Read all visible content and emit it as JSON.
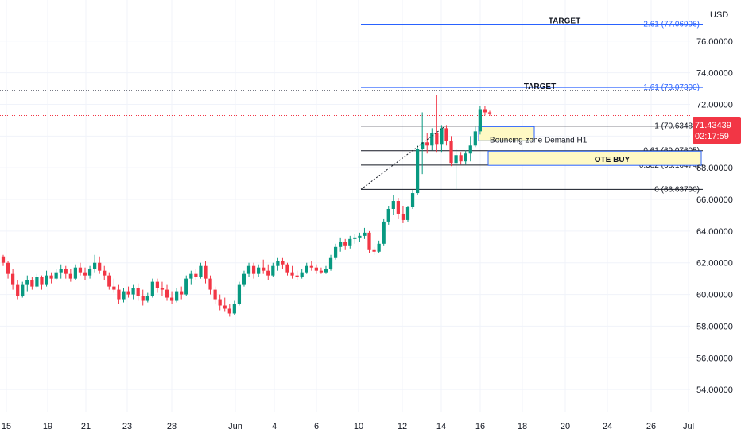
{
  "chart_data": {
    "type": "candlestick",
    "currency": "USD",
    "y_ticks": [
      "54.00000",
      "56.00000",
      "58.00000",
      "60.00000",
      "62.00000",
      "64.00000",
      "66.00000",
      "68.00000",
      "70.00000",
      "72.00000",
      "74.00000",
      "76.00000"
    ],
    "x_ticks": [
      "15",
      "19",
      "21",
      "23",
      "28",
      "Jun",
      "4",
      "6",
      "10",
      "12",
      "14",
      "16",
      "18",
      "20",
      "24",
      "26",
      "Jul"
    ],
    "ylim": [
      52.6,
      78.6
    ],
    "last_price": "71.43439",
    "countdown": "02:17:59",
    "fib_levels": [
      {
        "label": "2.61 (77.06996)",
        "value": 77.06996,
        "style": "target"
      },
      {
        "label": "1.61 (73.07300)",
        "value": 73.073,
        "style": "target"
      },
      {
        "label": "1 (70.63486)",
        "value": 70.63486,
        "style": "fib"
      },
      {
        "label": "0.61 (69.07605)",
        "value": 69.07605,
        "style": "fib"
      },
      {
        "label": "0.382 (68.16474)",
        "value": 68.16474,
        "style": "fib"
      },
      {
        "label": "0 (66.63790)",
        "value": 66.6379,
        "style": "fib"
      }
    ],
    "annotations": {
      "target_upper": "TARGET",
      "target_lower": "TARGET",
      "demand": "Bouncing zone Demand H1",
      "ote": "OTE BUY"
    },
    "dotted_levels": [
      72.9,
      71.3,
      58.7
    ],
    "zones": [
      {
        "name": "demand",
        "y_top": 70.6,
        "y_bottom": 69.7
      },
      {
        "name": "ote",
        "y_top": 69.05,
        "y_bottom": 68.15
      }
    ],
    "candles": [
      [
        62.4,
        62.5,
        61.8,
        62.0
      ],
      [
        62.0,
        62.1,
        61.0,
        61.3
      ],
      [
        61.3,
        61.6,
        60.3,
        60.6
      ],
      [
        60.6,
        60.9,
        59.7,
        59.9
      ],
      [
        59.9,
        60.8,
        59.8,
        60.6
      ],
      [
        60.6,
        61.2,
        60.2,
        60.9
      ],
      [
        60.9,
        61.1,
        60.3,
        60.5
      ],
      [
        60.5,
        61.3,
        60.4,
        61.1
      ],
      [
        61.1,
        61.2,
        60.3,
        60.6
      ],
      [
        60.6,
        61.5,
        60.5,
        61.2
      ],
      [
        61.2,
        61.4,
        60.7,
        61.0
      ],
      [
        61.0,
        61.6,
        60.9,
        61.4
      ],
      [
        61.4,
        61.9,
        61.0,
        61.6
      ],
      [
        61.6,
        61.8,
        61.0,
        61.3
      ],
      [
        61.3,
        61.6,
        60.8,
        61.0
      ],
      [
        61.0,
        61.9,
        60.9,
        61.7
      ],
      [
        61.7,
        62.0,
        61.2,
        61.4
      ],
      [
        61.4,
        61.7,
        60.9,
        61.2
      ],
      [
        61.2,
        61.8,
        61.0,
        61.6
      ],
      [
        61.6,
        62.5,
        61.4,
        62.0
      ],
      [
        62.0,
        62.4,
        61.3,
        61.5
      ],
      [
        61.5,
        61.8,
        60.9,
        61.2
      ],
      [
        61.2,
        61.4,
        60.3,
        60.5
      ],
      [
        60.5,
        61.0,
        60.1,
        60.3
      ],
      [
        60.3,
        60.6,
        59.4,
        59.7
      ],
      [
        59.7,
        60.4,
        59.5,
        60.2
      ],
      [
        60.2,
        60.5,
        59.8,
        60.0
      ],
      [
        60.0,
        60.6,
        59.7,
        60.4
      ],
      [
        60.4,
        60.7,
        59.6,
        59.9
      ],
      [
        59.9,
        60.3,
        59.3,
        59.6
      ],
      [
        59.6,
        60.1,
        59.5,
        59.9
      ],
      [
        59.9,
        61.0,
        59.8,
        60.8
      ],
      [
        60.8,
        61.0,
        60.1,
        60.4
      ],
      [
        60.4,
        60.8,
        59.9,
        60.3
      ],
      [
        60.3,
        60.6,
        59.6,
        59.8
      ],
      [
        59.8,
        60.2,
        59.4,
        59.6
      ],
      [
        59.6,
        60.4,
        59.5,
        60.2
      ],
      [
        60.2,
        60.5,
        59.7,
        60.0
      ],
      [
        60.0,
        61.2,
        59.9,
        61.0
      ],
      [
        61.0,
        61.5,
        60.6,
        61.3
      ],
      [
        61.3,
        61.6,
        60.9,
        61.1
      ],
      [
        61.1,
        62.0,
        61.0,
        61.8
      ],
      [
        61.8,
        62.1,
        60.7,
        61.0
      ],
      [
        61.0,
        61.2,
        60.0,
        60.3
      ],
      [
        60.3,
        60.5,
        59.4,
        59.7
      ],
      [
        59.7,
        60.0,
        59.0,
        59.3
      ],
      [
        59.3,
        59.8,
        58.9,
        59.1
      ],
      [
        59.1,
        59.4,
        58.6,
        58.8
      ],
      [
        58.8,
        59.6,
        58.7,
        59.4
      ],
      [
        59.4,
        60.8,
        59.3,
        60.6
      ],
      [
        60.6,
        61.5,
        60.5,
        61.3
      ],
      [
        61.3,
        62.0,
        61.1,
        61.8
      ],
      [
        61.8,
        62.0,
        61.0,
        61.3
      ],
      [
        61.3,
        61.9,
        61.1,
        61.7
      ],
      [
        61.7,
        62.2,
        61.3,
        61.5
      ],
      [
        61.5,
        61.9,
        60.9,
        61.2
      ],
      [
        61.2,
        62.0,
        61.1,
        61.8
      ],
      [
        61.8,
        62.3,
        61.5,
        62.1
      ],
      [
        62.1,
        62.3,
        61.6,
        61.9
      ],
      [
        61.9,
        62.0,
        61.2,
        61.4
      ],
      [
        61.4,
        61.8,
        61.0,
        61.2
      ],
      [
        61.2,
        61.5,
        60.9,
        61.1
      ],
      [
        61.1,
        61.6,
        61.0,
        61.4
      ],
      [
        61.4,
        62.0,
        61.3,
        61.8
      ],
      [
        61.8,
        62.1,
        61.5,
        61.7
      ],
      [
        61.7,
        61.9,
        61.3,
        61.5
      ],
      [
        61.5,
        61.7,
        61.3,
        61.4
      ],
      [
        61.4,
        61.8,
        61.3,
        61.6
      ],
      [
        61.6,
        62.5,
        61.5,
        62.3
      ],
      [
        62.3,
        63.2,
        62.2,
        63.0
      ],
      [
        63.0,
        63.6,
        62.7,
        63.3
      ],
      [
        63.3,
        63.5,
        62.8,
        63.1
      ],
      [
        63.1,
        63.7,
        62.9,
        63.5
      ],
      [
        63.5,
        63.8,
        63.2,
        63.6
      ],
      [
        63.6,
        63.9,
        63.3,
        63.7
      ],
      [
        63.7,
        64.2,
        63.5,
        63.9
      ],
      [
        63.9,
        64.0,
        62.6,
        62.8
      ],
      [
        62.8,
        63.0,
        62.5,
        62.7
      ],
      [
        62.7,
        63.4,
        62.6,
        63.2
      ],
      [
        63.2,
        64.8,
        63.1,
        64.6
      ],
      [
        64.6,
        65.6,
        64.4,
        65.4
      ],
      [
        65.4,
        66.3,
        65.0,
        65.9
      ],
      [
        65.9,
        66.1,
        64.8,
        65.1
      ],
      [
        65.1,
        65.6,
        64.5,
        64.7
      ],
      [
        64.7,
        65.6,
        64.6,
        65.5
      ],
      [
        65.5,
        66.6,
        65.4,
        66.4
      ],
      [
        66.4,
        69.4,
        66.3,
        69.2
      ],
      [
        69.2,
        71.5,
        67.6,
        69.6
      ],
      [
        69.6,
        70.2,
        68.9,
        69.4
      ],
      [
        69.4,
        70.5,
        69.1,
        70.2
      ],
      [
        70.2,
        72.6,
        69.0,
        69.5
      ],
      [
        69.5,
        70.7,
        69.0,
        70.5
      ],
      [
        70.5,
        70.7,
        69.4,
        69.7
      ],
      [
        69.7,
        70.0,
        68.1,
        68.3
      ],
      [
        68.3,
        69.2,
        66.6,
        68.8
      ],
      [
        68.8,
        69.0,
        68.2,
        68.4
      ],
      [
        68.4,
        69.1,
        68.2,
        68.9
      ],
      [
        68.9,
        70.0,
        68.4,
        69.4
      ],
      [
        69.4,
        70.6,
        69.3,
        70.3
      ],
      [
        70.3,
        71.9,
        70.1,
        71.7
      ],
      [
        71.7,
        71.9,
        71.3,
        71.5
      ],
      [
        71.5,
        71.6,
        71.3,
        71.43439
      ]
    ]
  }
}
